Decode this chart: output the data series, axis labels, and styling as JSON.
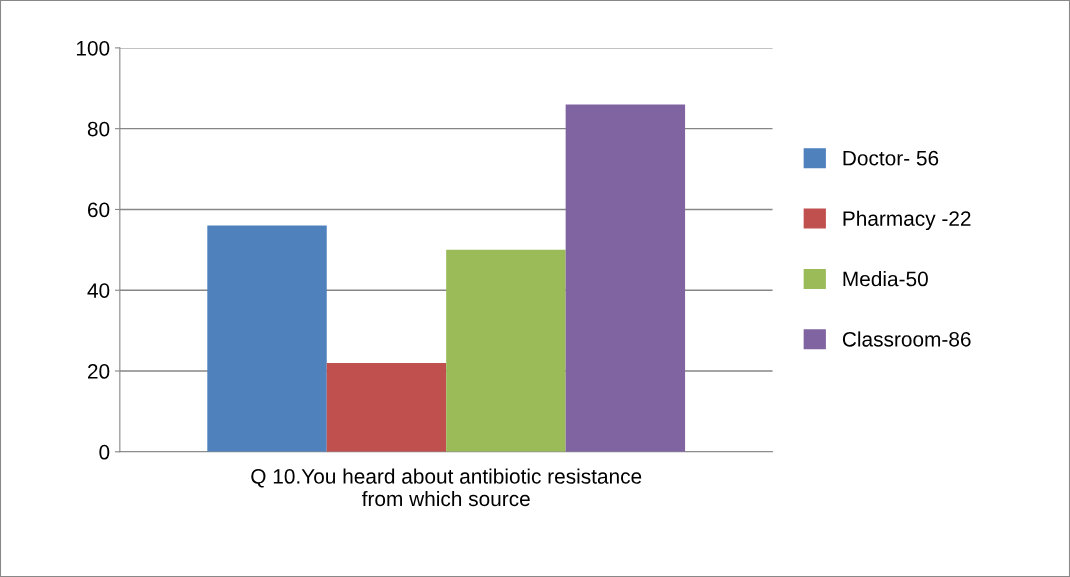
{
  "chart_data": {
    "type": "bar",
    "categories": [
      "Q 10.You heard about antibiotic resistance\nfrom which source"
    ],
    "series": [
      {
        "name": "Doctor- 56",
        "color": "#4f81bd",
        "values": [
          56
        ]
      },
      {
        "name": "Pharmacy -22",
        "color": "#c0504d",
        "values": [
          22
        ]
      },
      {
        "name": "Media-50",
        "color": "#9bbb59",
        "values": [
          50
        ]
      },
      {
        "name": "Classroom-86",
        "color": "#8064a2",
        "values": [
          86
        ]
      }
    ],
    "ylim": [
      0,
      100
    ],
    "yticks": [
      0,
      20,
      40,
      60,
      80,
      100
    ],
    "grid": "y",
    "legend": "right"
  }
}
